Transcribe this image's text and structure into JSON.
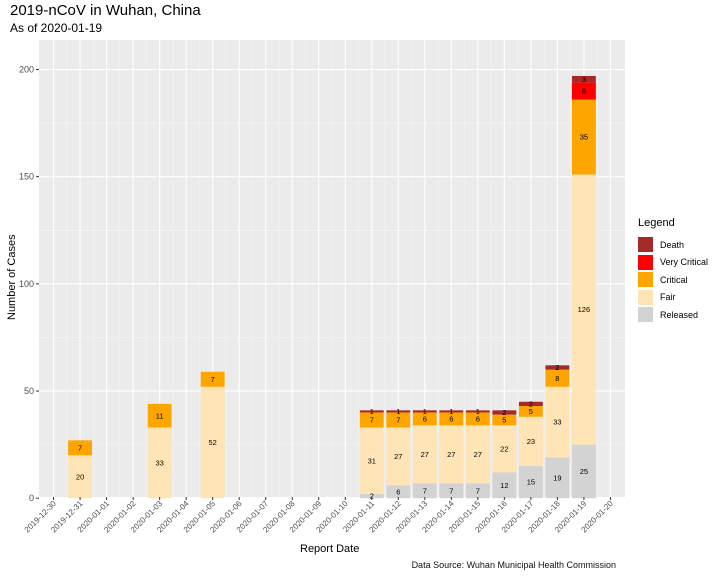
{
  "title": "2019-nCoV in Wuhan, China",
  "subtitle": "As of 2020-01-19",
  "caption": "Data Source: Wuhan Municipal Health Commission",
  "legend": {
    "title": "Legend",
    "items": [
      {
        "label": "Death",
        "color": "#A52A2A"
      },
      {
        "label": "Very Critical",
        "color": "#FF0000"
      },
      {
        "label": "Critical",
        "color": "#FFA500"
      },
      {
        "label": "Fair",
        "color": "#FFE4B5"
      },
      {
        "label": "Released",
        "color": "#D3D3D3"
      }
    ]
  },
  "chart_data": {
    "type": "bar",
    "stacked": true,
    "xlabel": "Report Date",
    "ylabel": "Number of Cases",
    "ylim": [
      0,
      205
    ],
    "yticks": [
      0,
      50,
      100,
      150,
      200
    ],
    "xlim": [
      "2019-12-30",
      "2020-01-20"
    ],
    "xticks": [
      "2019-12-30",
      "2019-12-31",
      "2020-01-01",
      "2020-01-02",
      "2020-01-03",
      "2020-01-04",
      "2020-01-05",
      "2020-01-06",
      "2020-01-07",
      "2020-01-08",
      "2020-01-09",
      "2020-01-10",
      "2020-01-11",
      "2020-01-12",
      "2020-01-13",
      "2020-01-14",
      "2020-01-15",
      "2020-01-16",
      "2020-01-17",
      "2020-01-18",
      "2020-01-19",
      "2020-01-20"
    ],
    "grid": true,
    "legend_position": "right",
    "categories": [
      "2019-12-31",
      "2020-01-03",
      "2020-01-05",
      "2020-01-11",
      "2020-01-12",
      "2020-01-13",
      "2020-01-14",
      "2020-01-15",
      "2020-01-16",
      "2020-01-17",
      "2020-01-18",
      "2020-01-19"
    ],
    "series": [
      {
        "name": "Released",
        "color": "#D3D3D3",
        "values": [
          0,
          0,
          0,
          2,
          6,
          7,
          7,
          7,
          12,
          15,
          19,
          25
        ]
      },
      {
        "name": "Fair",
        "color": "#FFE4B5",
        "values": [
          20,
          33,
          52,
          31,
          27,
          27,
          27,
          27,
          22,
          23,
          33,
          126
        ]
      },
      {
        "name": "Critical",
        "color": "#FFA500",
        "values": [
          7,
          11,
          7,
          7,
          7,
          6,
          6,
          6,
          5,
          5,
          8,
          35
        ]
      },
      {
        "name": "Very Critical",
        "color": "#FF0000",
        "values": [
          0,
          0,
          0,
          0,
          0,
          0,
          0,
          0,
          0,
          0,
          0,
          8
        ]
      },
      {
        "name": "Death",
        "color": "#A52A2A",
        "values": [
          0,
          0,
          0,
          1,
          1,
          1,
          1,
          1,
          2,
          2,
          2,
          3
        ]
      }
    ]
  }
}
